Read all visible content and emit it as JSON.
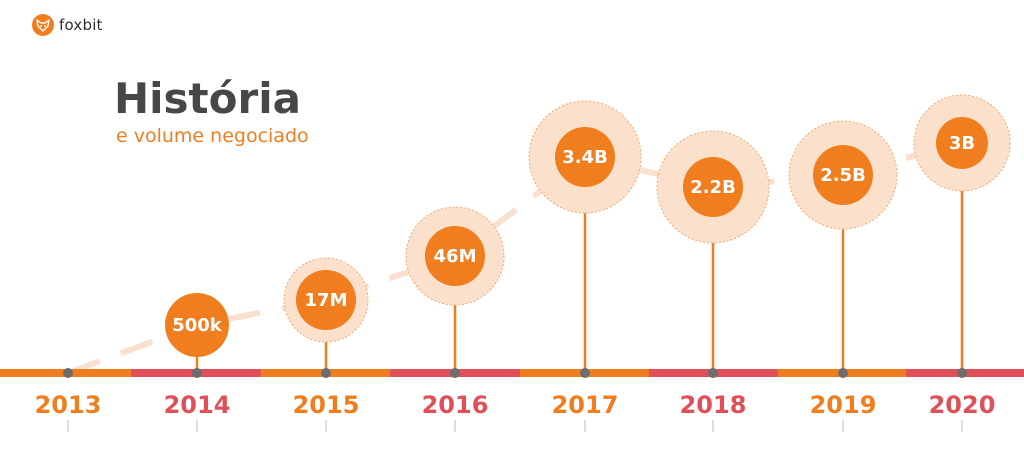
{
  "brand": {
    "name": "foxbit",
    "logo_icon": "fox-icon"
  },
  "header": {
    "title": "História",
    "subtitle": "e volume negociado"
  },
  "colors": {
    "orange": "#f07e1e",
    "red": "#e05058",
    "halo": "#fbe1cb",
    "halo_stroke": "#f0a870",
    "dash": "#fae1cf",
    "text_dark": "#474747"
  },
  "chart_data": {
    "type": "timeline",
    "title": "História",
    "subtitle": "e volume negociado",
    "categories": [
      "2013",
      "2014",
      "2015",
      "2016",
      "2017",
      "2018",
      "2019",
      "2020"
    ],
    "value_labels": [
      "",
      "500k",
      "17M",
      "46M",
      "3.4B",
      "2.2B",
      "2.5B",
      "3B"
    ],
    "values": [
      0,
      500000,
      17000000,
      46000000,
      3400000000,
      2200000000,
      2500000000,
      3000000000
    ],
    "grid": false,
    "legend": "none"
  }
}
